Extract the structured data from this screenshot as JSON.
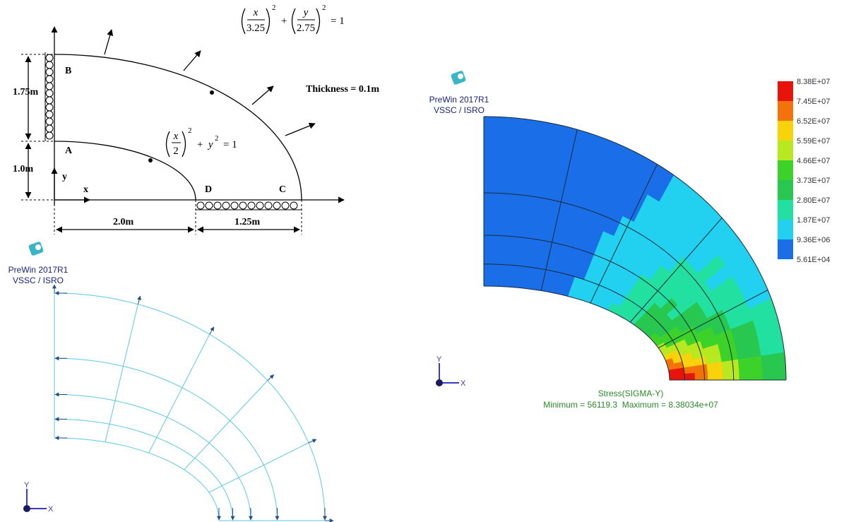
{
  "problem": {
    "outer_equation": {
      "x_numerator": "x",
      "x_denominator": "3.25",
      "x_exponent": "2",
      "plus": "+",
      "y_numerator": "y",
      "y_denominator": "2.75",
      "y_exponent": "2",
      "equals": "= 1"
    },
    "inner_equation": {
      "x_numerator": "x",
      "x_denominator": "2",
      "x_exponent": "2",
      "plus": "+",
      "y": "y",
      "y_exponent": "2",
      "equals": "= 1"
    },
    "thickness": "Thickness = 0.1m",
    "points": {
      "a": "A",
      "b": "B",
      "c": "C",
      "d": "D"
    },
    "axes": {
      "x": "x",
      "y": "y"
    },
    "dimensions": {
      "left_upper": "1.75m",
      "left_lower": "1.0m",
      "bottom_left": "2.0m",
      "bottom_right": "1.25m"
    }
  },
  "mesh_view": {
    "logo": {
      "line1": "PreWin 2017R1",
      "line2": "VSSC / ISRO"
    },
    "triad": {
      "x": "X",
      "y": "Y"
    }
  },
  "result_view": {
    "logo": {
      "line1": "PreWin 2017R1",
      "line2": "VSSC / ISRO"
    },
    "triad": {
      "x": "X",
      "y": "Y"
    },
    "caption": "Stress(SIGMA-Y)",
    "range": "Minimum = 56119.3  Maximum = 8.38034e+07",
    "legend": {
      "labels": [
        "8.38E+07",
        "7.45E+07",
        "6.52E+07",
        "5.59E+07",
        "4.66E+07",
        "3.73E+07",
        "2.80E+07",
        "1.87E+07",
        "9.36E+06",
        "5.61E+04"
      ],
      "colors": [
        "#e8140c",
        "#f4720a",
        "#f8d20a",
        "#b8e820",
        "#3cd22a",
        "#28c850",
        "#22e0a0",
        "#22d0f0",
        "#1a6ee8"
      ]
    }
  }
}
